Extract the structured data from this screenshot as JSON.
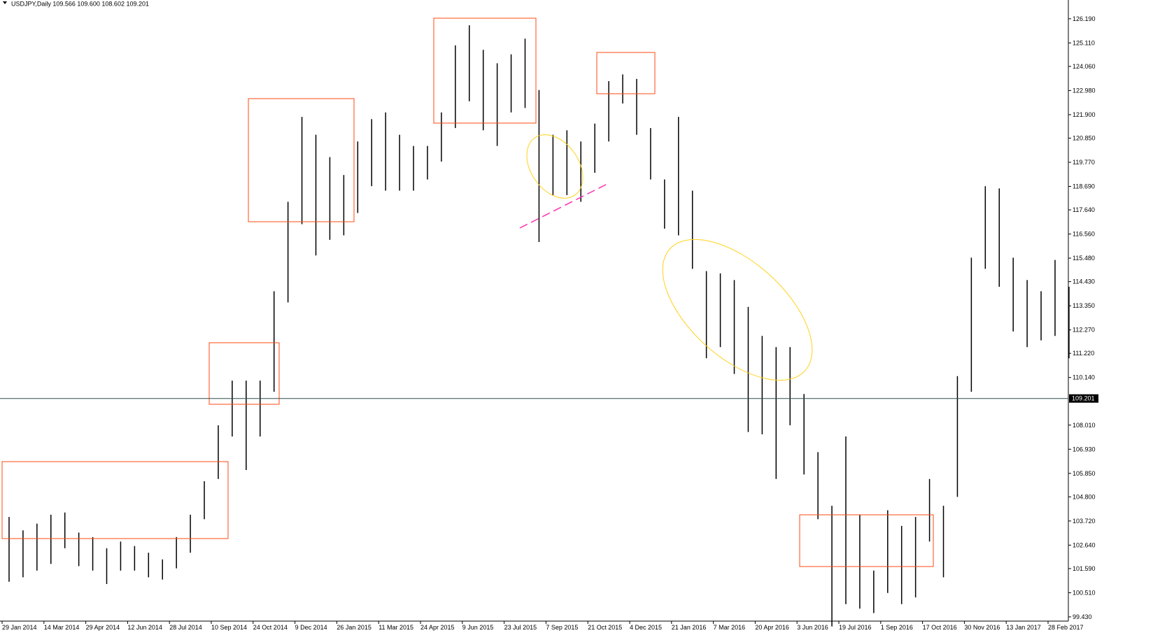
{
  "chart_data": {
    "type": "hilo",
    "title": "USDJPY,Daily  109.566 109.600 108.602 109.201",
    "color": "#000000",
    "high": [
      103.9,
      103.3,
      103.6,
      104.0,
      104.1,
      103.2,
      103.0,
      102.5,
      102.8,
      102.6,
      102.3,
      102.0,
      103.0,
      104.0,
      105.5,
      108.0,
      110.0,
      110.0,
      110.0,
      114.0,
      118.0,
      121.8,
      121.0,
      120.0,
      119.2,
      120.7,
      121.7,
      122.0,
      121.0,
      120.5,
      120.5,
      122.0,
      125.0,
      125.9,
      124.8,
      124.2,
      124.6,
      125.3,
      123.0,
      121.0,
      121.2,
      120.7,
      121.5,
      123.4,
      123.7,
      123.5,
      121.3,
      119.0,
      121.8,
      118.5,
      114.9,
      114.8,
      114.5,
      113.3,
      112.0,
      111.5,
      111.5,
      109.4,
      106.8,
      104.4,
      107.5,
      104.0,
      101.5,
      104.2,
      103.5,
      103.9,
      105.6,
      104.4,
      110.2,
      115.5,
      118.7,
      118.6,
      115.5,
      114.5,
      114.0,
      115.4,
      114.2
    ],
    "low": [
      101.0,
      101.2,
      101.5,
      101.8,
      102.5,
      101.7,
      101.5,
      100.9,
      101.5,
      101.5,
      101.2,
      101.1,
      101.6,
      102.3,
      103.8,
      105.6,
      107.5,
      106.0,
      107.5,
      109.5,
      113.5,
      117.0,
      115.6,
      116.3,
      116.5,
      117.5,
      118.7,
      118.5,
      118.5,
      118.5,
      119.0,
      119.8,
      121.3,
      122.5,
      121.2,
      120.5,
      122.0,
      122.2,
      116.2,
      118.3,
      118.3,
      118.0,
      119.3,
      120.7,
      122.4,
      121.0,
      119.0,
      116.8,
      116.5,
      115.0,
      111.0,
      111.5,
      110.3,
      107.7,
      107.6,
      105.6,
      108.0,
      105.8,
      103.8,
      99.0,
      100.0,
      99.8,
      99.6,
      100.5,
      100.0,
      100.3,
      102.8,
      101.2,
      104.8,
      109.5,
      115.0,
      114.2,
      112.2,
      111.5,
      111.8,
      112.0,
      111.0
    ],
    "x_labels": [
      "29 Jan 2014",
      "14 Mar 2014",
      "29 Apr 2014",
      "12 Jun 2014",
      "28 Jul 2014",
      "10 Sep 2014",
      "24 Oct 2014",
      "9 Dec 2014",
      "26 Jan 2015",
      "11 Mar 2015",
      "24 Apr 2015",
      "9 Jun 2015",
      "23 Jul 2015",
      "7 Sep 2015",
      "21 Oct 2015",
      "4 Dec 2015",
      "21 Jan 2016",
      "7 Mar 2016",
      "20 Apr 2016",
      "3 Jun 2016",
      "19 Jul 2016",
      "1 Sep 2016",
      "17 Oct 2016",
      "30 Nov 2016",
      "13 Jan 2017",
      "28 Feb 2017"
    ],
    "ylim": [
      99.24,
      127.03
    ],
    "yticks": [
      {
        "value": 126.19,
        "label": "126.190"
      },
      {
        "value": 125.11,
        "label": "125.110"
      },
      {
        "value": 124.06,
        "label": "124.060"
      },
      {
        "value": 122.98,
        "label": "122.980"
      },
      {
        "value": 121.9,
        "label": "121.900"
      },
      {
        "value": 120.85,
        "label": "120.850"
      },
      {
        "value": 119.77,
        "label": "119.770"
      },
      {
        "value": 118.69,
        "label": "118.690"
      },
      {
        "value": 117.64,
        "label": "117.640"
      },
      {
        "value": 116.56,
        "label": "116.560"
      },
      {
        "value": 115.48,
        "label": "115.480"
      },
      {
        "value": 114.43,
        "label": "114.430"
      },
      {
        "value": 113.35,
        "label": "113.350"
      },
      {
        "value": 112.27,
        "label": "112.270"
      },
      {
        "value": 111.22,
        "label": "111.220"
      },
      {
        "value": 110.14,
        "label": "110.140"
      },
      {
        "value": 108.01,
        "label": "108.010"
      },
      {
        "value": 106.93,
        "label": "106.930"
      },
      {
        "value": 105.85,
        "label": "105.850"
      },
      {
        "value": 104.8,
        "label": "104.800"
      },
      {
        "value": 103.72,
        "label": "103.720"
      },
      {
        "value": 102.64,
        "label": "102.640"
      },
      {
        "value": 101.59,
        "label": "101.590"
      },
      {
        "value": 100.51,
        "label": "100.510"
      },
      {
        "value": 99.43,
        "label": "99.430"
      }
    ],
    "last_price": 109.201
  }
}
